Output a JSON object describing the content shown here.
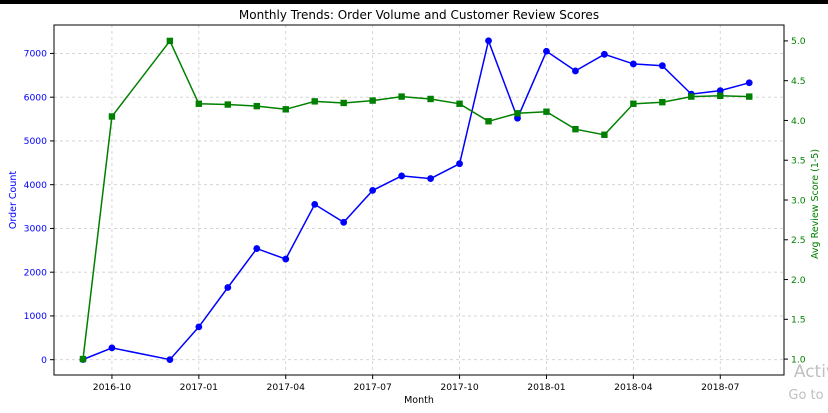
{
  "chart_data": {
    "type": "line",
    "title": "Monthly Trends: Order Volume and Customer Review Scores",
    "xlabel": "Month",
    "ylabel_left": "Order Count",
    "ylabel_right": "Avg Review Score (1-5)",
    "x": [
      "2016-09",
      "2016-10",
      "2016-12",
      "2017-01",
      "2017-02",
      "2017-03",
      "2017-04",
      "2017-05",
      "2017-06",
      "2017-07",
      "2017-08",
      "2017-09",
      "2017-10",
      "2017-11",
      "2017-12",
      "2018-01",
      "2018-02",
      "2018-03",
      "2018-04",
      "2018-05",
      "2018-06",
      "2018-07",
      "2018-08"
    ],
    "x_ticks": [
      "2016-10",
      "2017-01",
      "2017-04",
      "2017-07",
      "2017-10",
      "2018-01",
      "2018-04",
      "2018-07"
    ],
    "ylim_left": [
      -350,
      7650
    ],
    "ylim_right": [
      0.8,
      5.2
    ],
    "yticks_left": [
      0,
      1000,
      2000,
      3000,
      4000,
      5000,
      6000,
      7000
    ],
    "yticks_right": [
      "1.0",
      "1.5",
      "2.0",
      "2.5",
      "3.0",
      "3.5",
      "4.0",
      "4.5",
      "5.0"
    ],
    "grid": true,
    "series": [
      {
        "axis": "left",
        "color": "#0000ff",
        "marker": "circle",
        "values": [
          4,
          270,
          1,
          750,
          1650,
          2540,
          2300,
          3550,
          3140,
          3870,
          4200,
          4140,
          4480,
          7290,
          5520,
          7050,
          6600,
          6980,
          6760,
          6720,
          6070,
          6150,
          6330
        ]
      },
      {
        "axis": "right",
        "color": "#008000",
        "marker": "square",
        "values": [
          1.0,
          4.05,
          5.0,
          4.21,
          4.2,
          4.18,
          4.14,
          4.24,
          4.22,
          4.25,
          4.3,
          4.27,
          4.21,
          3.99,
          4.09,
          4.11,
          3.89,
          3.82,
          4.21,
          4.23,
          4.3,
          4.31,
          4.3
        ]
      }
    ]
  },
  "watermark": {
    "line1": "Activ",
    "line2": "Go to S"
  }
}
